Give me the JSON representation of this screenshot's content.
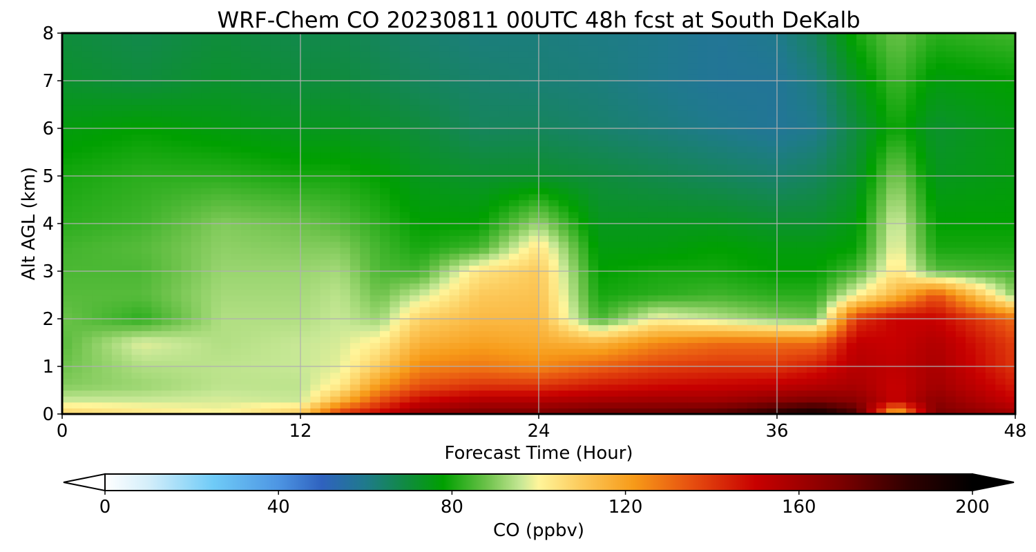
{
  "chart_data": {
    "type": "heatmap",
    "title": "WRF-Chem CO  20230811 00UTC 48h fcst at South DeKalb",
    "xlabel": "Forecast Time (Hour)",
    "ylabel": "Alt AGL (km)",
    "xlim": [
      0,
      48
    ],
    "ylim": [
      0,
      8
    ],
    "xticks": [
      "0",
      "12",
      "24",
      "36",
      "48"
    ],
    "yticks": [
      "0",
      "1",
      "2",
      "3",
      "4",
      "5",
      "6",
      "7",
      "8"
    ],
    "grid": true,
    "colorbar": {
      "label": "CO  (ppbv)",
      "range": [
        0,
        200
      ],
      "ticks": [
        "0",
        "40",
        "80",
        "120",
        "160",
        "200"
      ],
      "extend": "both",
      "stops": [
        {
          "value": 0,
          "color": "#ffffff"
        },
        {
          "value": 10,
          "color": "#d4eefa"
        },
        {
          "value": 25,
          "color": "#6fcbf7"
        },
        {
          "value": 40,
          "color": "#4d95e3"
        },
        {
          "value": 50,
          "color": "#2f62bf"
        },
        {
          "value": 60,
          "color": "#1f7a8c"
        },
        {
          "value": 70,
          "color": "#0f8c3c"
        },
        {
          "value": 78,
          "color": "#00a000"
        },
        {
          "value": 88,
          "color": "#6cc24a"
        },
        {
          "value": 96,
          "color": "#c8e896"
        },
        {
          "value": 100,
          "color": "#fff59a"
        },
        {
          "value": 110,
          "color": "#fcc95a"
        },
        {
          "value": 122,
          "color": "#f79a18"
        },
        {
          "value": 135,
          "color": "#e75010"
        },
        {
          "value": 150,
          "color": "#c80000"
        },
        {
          "value": 170,
          "color": "#7a0000"
        },
        {
          "value": 185,
          "color": "#300000"
        },
        {
          "value": 200,
          "color": "#000000"
        }
      ]
    },
    "boundary_layer_top_km": {
      "x": [
        0,
        6,
        7,
        10,
        12,
        13,
        14,
        15,
        16,
        18,
        20,
        21,
        22,
        23,
        24,
        25,
        26,
        28,
        30,
        32,
        34,
        36,
        38,
        40,
        41,
        42,
        43,
        44,
        46,
        48
      ],
      "y": [
        0.25,
        0.15,
        0.08,
        0.1,
        0.15,
        0.35,
        0.6,
        0.9,
        1.7,
        2.3,
        2.75,
        2.9,
        2.6,
        2.3,
        3.7,
        2.0,
        1.7,
        1.55,
        1.9,
        1.9,
        1.85,
        1.8,
        1.65,
        2.05,
        2.2,
        3.5,
        2.4,
        2.5,
        2.2,
        2.0
      ]
    },
    "levels_km": [
      0,
      0.3,
      0.6,
      1,
      1.5,
      2,
      2.5,
      3,
      3.5,
      4,
      5,
      6,
      7,
      8
    ],
    "columns": [
      {
        "hour": 0,
        "values": [
          108,
          96,
          90,
          88,
          86,
          88,
          86,
          85,
          84,
          82,
          80,
          76,
          72,
          70
        ]
      },
      {
        "hour": 4,
        "values": [
          104,
          96,
          92,
          94,
          98,
          82,
          86,
          85,
          86,
          84,
          82,
          78,
          70,
          68
        ]
      },
      {
        "hour": 8,
        "values": [
          100,
          97,
          95,
          95,
          94,
          94,
          93,
          92,
          91,
          90,
          82,
          76,
          72,
          70
        ]
      },
      {
        "hour": 12,
        "values": [
          110,
          96,
          95,
          96,
          96,
          94,
          93,
          92,
          90,
          88,
          80,
          74,
          70,
          68
        ]
      },
      {
        "hour": 14,
        "values": [
          140,
          115,
          102,
          98,
          97,
          96,
          95,
          93,
          90,
          86,
          80,
          74,
          70,
          68
        ]
      },
      {
        "hour": 16,
        "values": [
          150,
          135,
          122,
          110,
          102,
          92,
          88,
          85,
          84,
          82,
          78,
          72,
          68,
          66
        ]
      },
      {
        "hour": 18,
        "values": [
          165,
          148,
          135,
          125,
          116,
          108,
          96,
          84,
          80,
          78,
          74,
          70,
          66,
          64
        ]
      },
      {
        "hour": 21,
        "values": [
          170,
          155,
          140,
          128,
          120,
          114,
          110,
          104,
          84,
          78,
          72,
          66,
          64,
          62
        ]
      },
      {
        "hour": 24,
        "values": [
          170,
          155,
          140,
          125,
          118,
          114,
          112,
          110,
          104,
          92,
          72,
          66,
          63,
          62
        ]
      },
      {
        "hour": 27,
        "values": [
          175,
          158,
          145,
          132,
          115,
          84,
          80,
          78,
          76,
          74,
          70,
          64,
          62,
          61
        ]
      },
      {
        "hour": 30,
        "values": [
          175,
          160,
          148,
          138,
          125,
          100,
          82,
          80,
          76,
          74,
          68,
          62,
          60,
          60
        ]
      },
      {
        "hour": 33,
        "values": [
          178,
          160,
          150,
          140,
          130,
          95,
          84,
          80,
          78,
          74,
          66,
          60,
          58,
          58
        ]
      },
      {
        "hour": 36,
        "values": [
          188,
          165,
          152,
          140,
          130,
          90,
          82,
          78,
          76,
          72,
          64,
          58,
          58,
          60
        ]
      },
      {
        "hour": 38,
        "values": [
          195,
          168,
          155,
          145,
          130,
          88,
          82,
          78,
          76,
          72,
          66,
          60,
          62,
          66
        ]
      },
      {
        "hour": 40,
        "values": [
          180,
          165,
          158,
          155,
          152,
          140,
          100,
          85,
          78,
          76,
          72,
          70,
          74,
          80
        ]
      },
      {
        "hour": 42,
        "values": [
          110,
          150,
          150,
          152,
          150,
          150,
          115,
          104,
          100,
          98,
          90,
          80,
          84,
          88
        ]
      },
      {
        "hour": 44,
        "values": [
          170,
          165,
          160,
          158,
          156,
          150,
          135,
          86,
          80,
          78,
          74,
          72,
          76,
          82
        ]
      },
      {
        "hour": 48,
        "values": [
          160,
          150,
          145,
          140,
          138,
          130,
          90,
          84,
          80,
          78,
          76,
          76,
          78,
          84
        ]
      }
    ]
  }
}
